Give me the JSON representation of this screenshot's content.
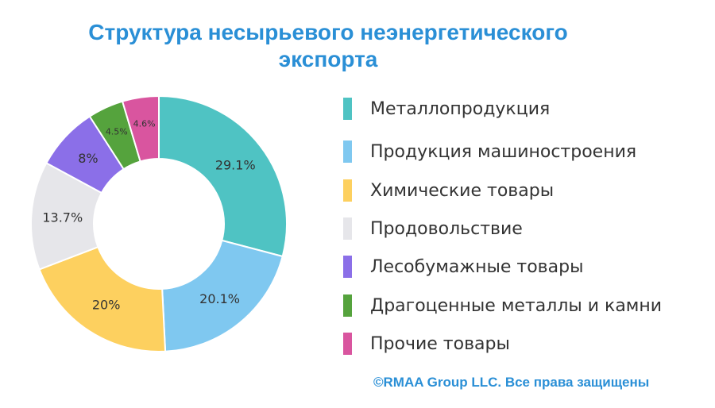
{
  "title_lines": [
    "Структура несырьевого неэнергетического",
    "экспорта"
  ],
  "copyright": "©RMAA Group LLC. Все права защищены",
  "chart_data": {
    "type": "pie",
    "donut": true,
    "title": "Структура несырьевого неэнергетического экспорта",
    "legend_position": "right",
    "categories": [
      "Металлопродукция",
      "Продукция машиностроения",
      "Химические товары",
      "Продовольствие",
      "Лесобумажные товары",
      "Драгоценные металлы и камни",
      "Прочие товары"
    ],
    "values": [
      29.1,
      20.1,
      20,
      13.7,
      8,
      4.5,
      4.6
    ],
    "labels": [
      "29.1%",
      "20.1%",
      "20%",
      "13.7%",
      "8%",
      "4.5%",
      "4.6%"
    ],
    "colors": [
      "#4fc3c3",
      "#7fc8f0",
      "#fdd05f",
      "#e6e6ea",
      "#8b6fe8",
      "#55a33d",
      "#d9559f"
    ]
  }
}
